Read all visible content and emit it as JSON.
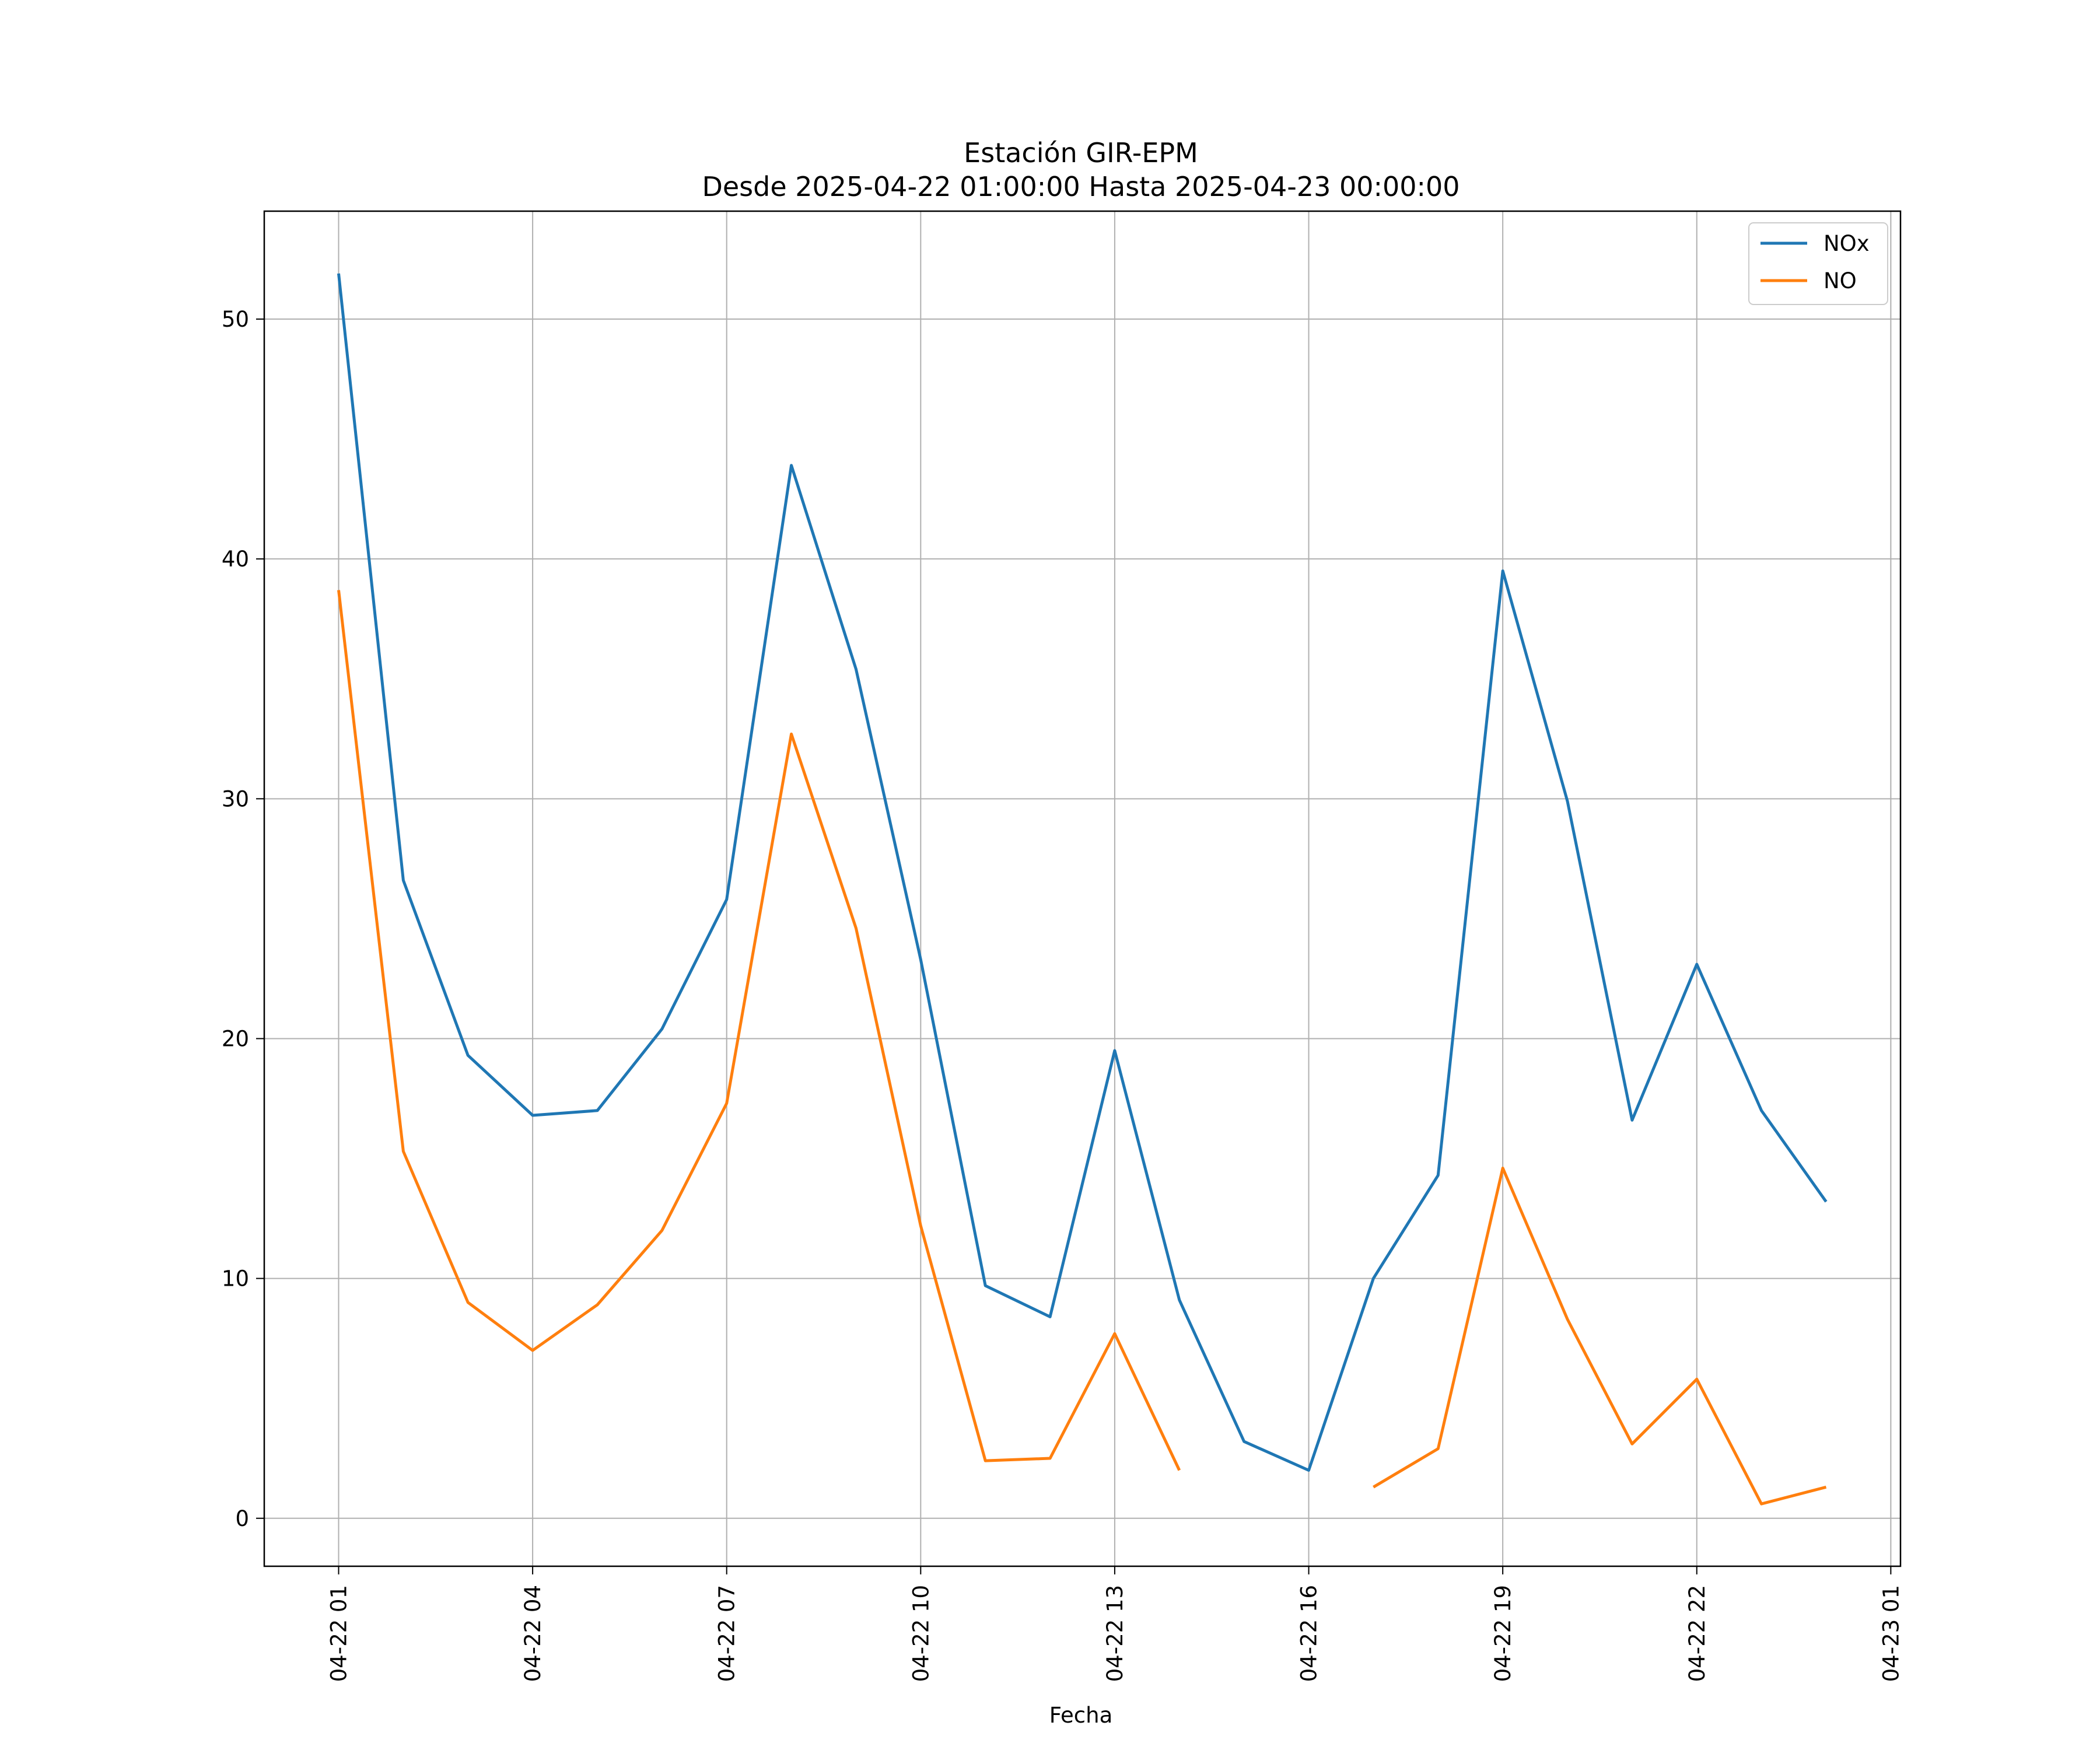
{
  "chart_data": {
    "type": "line",
    "title": "Estación GIR-EPM",
    "subtitle": "Desde 2025-04-22 01:00:00 Hasta 2025-04-23 00:00:00",
    "xlabel": "Fecha",
    "ylabel": "",
    "x": [
      "2025-04-22 01:00",
      "2025-04-22 02:00",
      "2025-04-22 03:00",
      "2025-04-22 04:00",
      "2025-04-22 05:00",
      "2025-04-22 06:00",
      "2025-04-22 07:00",
      "2025-04-22 08:00",
      "2025-04-22 09:00",
      "2025-04-22 10:00",
      "2025-04-22 11:00",
      "2025-04-22 12:00",
      "2025-04-22 13:00",
      "2025-04-22 14:00",
      "2025-04-22 15:00",
      "2025-04-22 16:00",
      "2025-04-22 17:00",
      "2025-04-22 18:00",
      "2025-04-22 19:00",
      "2025-04-22 20:00",
      "2025-04-22 21:00",
      "2025-04-22 22:00",
      "2025-04-22 23:00",
      "2025-04-23 00:00"
    ],
    "series": [
      {
        "name": "NOx",
        "color": "#1f77b4",
        "values": [
          51.9,
          26.6,
          19.3,
          16.8,
          17.0,
          20.4,
          25.8,
          43.9,
          35.4,
          23.3,
          9.7,
          8.4,
          19.5,
          9.1,
          3.2,
          2.0,
          10.0,
          14.3,
          39.5,
          29.9,
          16.6,
          23.1,
          17.0,
          13.2
        ]
      },
      {
        "name": "NO",
        "color": "#ff7f0e",
        "values": [
          38.7,
          15.3,
          9.0,
          7.0,
          8.9,
          12.0,
          17.3,
          32.7,
          24.6,
          12.2,
          2.4,
          2.5,
          7.7,
          2.0,
          null,
          null,
          1.3,
          2.9,
          14.6,
          8.3,
          3.1,
          5.8,
          0.6,
          1.3
        ]
      }
    ],
    "xticks": [
      "04-22 01",
      "04-22 04",
      "04-22 07",
      "04-22 10",
      "04-22 13",
      "04-22 16",
      "04-22 19",
      "04-22 22",
      "04-23 01"
    ],
    "yticks": [
      0,
      10,
      20,
      30,
      40,
      50
    ],
    "xlim": [
      "2025-04-21 23:51",
      "2025-04-23 01:09"
    ],
    "ylim": [
      -2.0,
      54.5
    ],
    "grid": true,
    "legend": "upper right"
  }
}
